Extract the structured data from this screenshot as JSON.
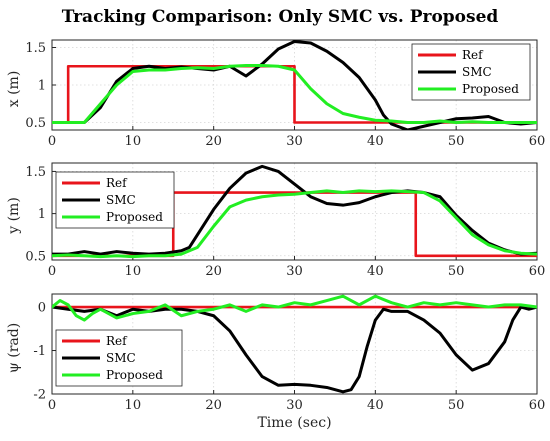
{
  "title": "Tracking Comparison: Only SMC vs. Proposed",
  "colors": {
    "Ref": "#e8141b",
    "SMC": "#000000",
    "Proposed": "#22ee22"
  },
  "chart_data": [
    {
      "type": "line",
      "ylabel": "x (m)",
      "xlabel": "",
      "xlim": [
        0,
        60
      ],
      "ylim": [
        0.4,
        1.6
      ],
      "xticks": [
        "0",
        "10",
        "20",
        "30",
        "40",
        "50",
        "60"
      ],
      "yticks": [
        "0.5",
        "1",
        "1.5"
      ],
      "ytick_values": [
        0.5,
        1,
        1.5
      ],
      "grid": true,
      "legend": "top-right",
      "series": [
        {
          "name": "Ref",
          "x": [
            0,
            2,
            2,
            30,
            30,
            60
          ],
          "y": [
            0.5,
            0.5,
            1.25,
            1.25,
            0.5,
            0.5
          ]
        },
        {
          "name": "SMC",
          "x": [
            0,
            2,
            4,
            6,
            8,
            10,
            12,
            14,
            16,
            18,
            20,
            22,
            24,
            26,
            28,
            30,
            32,
            34,
            36,
            38,
            40,
            41,
            42,
            44,
            46,
            48,
            50,
            52,
            54,
            56,
            58,
            60
          ],
          "y": [
            0.5,
            0.5,
            0.5,
            0.7,
            1.05,
            1.22,
            1.25,
            1.22,
            1.24,
            1.22,
            1.2,
            1.25,
            1.12,
            1.28,
            1.48,
            1.58,
            1.56,
            1.45,
            1.3,
            1.1,
            0.8,
            0.6,
            0.48,
            0.4,
            0.45,
            0.5,
            0.55,
            0.56,
            0.58,
            0.5,
            0.48,
            0.5
          ]
        },
        {
          "name": "Proposed",
          "x": [
            0,
            2,
            4,
            6,
            8,
            10,
            12,
            14,
            16,
            18,
            20,
            22,
            24,
            26,
            28,
            30,
            32,
            34,
            36,
            38,
            40,
            42,
            44,
            46,
            48,
            50,
            52,
            54,
            56,
            58,
            60
          ],
          "y": [
            0.5,
            0.5,
            0.5,
            0.75,
            1.0,
            1.18,
            1.2,
            1.2,
            1.22,
            1.23,
            1.22,
            1.25,
            1.26,
            1.26,
            1.25,
            1.2,
            0.95,
            0.75,
            0.62,
            0.57,
            0.53,
            0.52,
            0.5,
            0.5,
            0.52,
            0.5,
            0.51,
            0.5,
            0.5,
            0.5,
            0.5
          ]
        }
      ]
    },
    {
      "type": "line",
      "ylabel": "y (m)",
      "xlabel": "",
      "xlim": [
        0,
        60
      ],
      "ylim": [
        0.45,
        1.6
      ],
      "xticks": [
        "0",
        "10",
        "20",
        "30",
        "40",
        "50",
        "60"
      ],
      "yticks": [
        "0.5",
        "1",
        "1.5"
      ],
      "ytick_values": [
        0.5,
        1,
        1.5
      ],
      "grid": true,
      "legend": "top-left",
      "series": [
        {
          "name": "Ref",
          "x": [
            0,
            15,
            15,
            45,
            45,
            60
          ],
          "y": [
            0.5,
            0.5,
            1.25,
            1.25,
            0.5,
            0.5
          ]
        },
        {
          "name": "SMC",
          "x": [
            0,
            2,
            4,
            6,
            8,
            10,
            12,
            14,
            16,
            17,
            18,
            20,
            22,
            24,
            26,
            28,
            30,
            32,
            34,
            36,
            38,
            40,
            42,
            44,
            46,
            48,
            50,
            52,
            54,
            56,
            58,
            60
          ],
          "y": [
            0.52,
            0.52,
            0.55,
            0.52,
            0.55,
            0.53,
            0.52,
            0.53,
            0.56,
            0.6,
            0.75,
            1.05,
            1.3,
            1.48,
            1.56,
            1.5,
            1.35,
            1.2,
            1.12,
            1.1,
            1.13,
            1.2,
            1.25,
            1.27,
            1.25,
            1.2,
            0.98,
            0.8,
            0.65,
            0.57,
            0.52,
            0.53
          ]
        },
        {
          "name": "Proposed",
          "x": [
            0,
            2,
            4,
            6,
            8,
            10,
            12,
            14,
            16,
            18,
            20,
            22,
            24,
            26,
            28,
            30,
            32,
            34,
            36,
            38,
            40,
            42,
            44,
            46,
            48,
            50,
            52,
            54,
            56,
            58,
            60
          ],
          "y": [
            0.5,
            0.51,
            0.5,
            0.49,
            0.5,
            0.49,
            0.5,
            0.5,
            0.52,
            0.6,
            0.85,
            1.08,
            1.16,
            1.2,
            1.22,
            1.23,
            1.25,
            1.27,
            1.25,
            1.27,
            1.26,
            1.27,
            1.26,
            1.25,
            1.15,
            0.95,
            0.75,
            0.63,
            0.56,
            0.53,
            0.52
          ]
        }
      ]
    },
    {
      "type": "line",
      "ylabel": "ψ (rad)",
      "xlabel": "Time (sec)",
      "xlim": [
        0,
        60
      ],
      "ylim": [
        -2,
        0.3
      ],
      "xticks": [
        "0",
        "10",
        "20",
        "30",
        "40",
        "50",
        "60"
      ],
      "yticks": [
        "0",
        "-1",
        "-2"
      ],
      "ytick_values": [
        0,
        -1,
        -2
      ],
      "grid": true,
      "legend": "middle-left",
      "series": [
        {
          "name": "Ref",
          "x": [
            0,
            60
          ],
          "y": [
            0,
            0
          ]
        },
        {
          "name": "SMC",
          "x": [
            0,
            2,
            4,
            6,
            8,
            10,
            12,
            14,
            16,
            18,
            20,
            22,
            24,
            26,
            28,
            30,
            32,
            34,
            36,
            37,
            38,
            39,
            40,
            41,
            42,
            44,
            46,
            48,
            50,
            52,
            54,
            56,
            57,
            58,
            59,
            60
          ],
          "y": [
            0,
            -0.05,
            -0.1,
            -0.05,
            -0.2,
            -0.05,
            -0.1,
            -0.05,
            -0.05,
            -0.1,
            -0.2,
            -0.55,
            -1.1,
            -1.6,
            -1.8,
            -1.78,
            -1.8,
            -1.85,
            -1.95,
            -1.9,
            -1.6,
            -0.9,
            -0.3,
            -0.05,
            -0.1,
            -0.1,
            -0.3,
            -0.6,
            -1.1,
            -1.45,
            -1.3,
            -0.8,
            -0.3,
            0.0,
            -0.05,
            0.0
          ]
        },
        {
          "name": "Proposed",
          "x": [
            0,
            1,
            2,
            3,
            4,
            5,
            6,
            8,
            10,
            12,
            14,
            16,
            18,
            20,
            22,
            24,
            26,
            28,
            30,
            32,
            34,
            36,
            38,
            40,
            42,
            44,
            46,
            48,
            50,
            52,
            54,
            56,
            58,
            60
          ],
          "y": [
            0.0,
            0.15,
            0.05,
            -0.2,
            -0.3,
            -0.15,
            -0.05,
            -0.25,
            -0.15,
            -0.1,
            0.05,
            -0.2,
            -0.1,
            -0.05,
            0.05,
            -0.1,
            0.05,
            0.0,
            0.1,
            0.05,
            0.15,
            0.25,
            0.05,
            0.25,
            0.1,
            0.0,
            0.1,
            0.05,
            0.1,
            0.05,
            0.0,
            0.05,
            0.05,
            0.0
          ]
        }
      ]
    }
  ]
}
